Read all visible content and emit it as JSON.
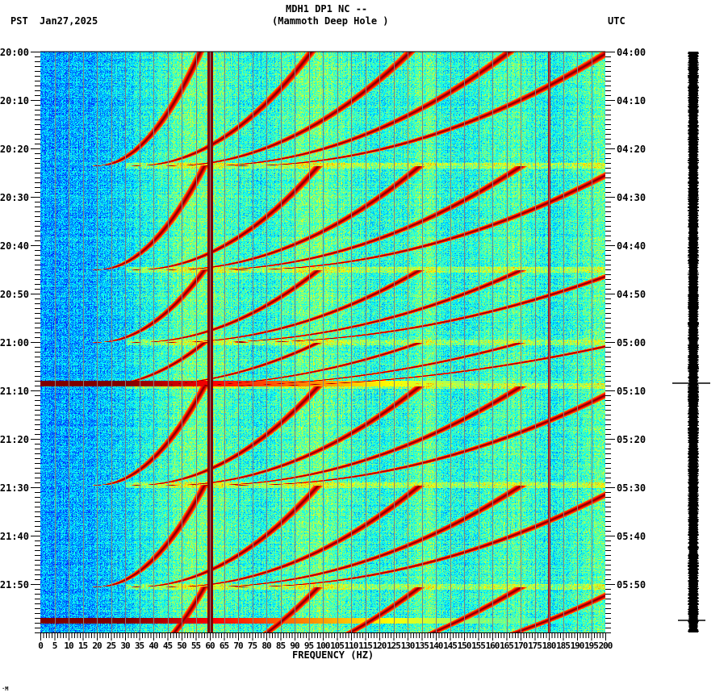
{
  "header": {
    "station": "MDH1 DP1 NC --",
    "site": "(Mammoth Deep Hole )",
    "left_tz": "PST",
    "date": "Jan27,2025",
    "right_tz": "UTC"
  },
  "footer_mark": "·M",
  "chart_data": {
    "type": "heatmap",
    "title": "MDH1 DP1 NC -- (Mammoth Deep Hole )",
    "subtitle": "Jan27,2025",
    "xlabel": "FREQUENCY (HZ)",
    "ylabel_left": "PST",
    "ylabel_right": "UTC",
    "xlim": [
      0,
      200
    ],
    "x_ticks": [
      0,
      5,
      10,
      15,
      20,
      25,
      30,
      35,
      40,
      45,
      50,
      55,
      60,
      65,
      70,
      75,
      80,
      85,
      90,
      95,
      100,
      105,
      110,
      115,
      120,
      125,
      130,
      135,
      140,
      145,
      150,
      155,
      160,
      165,
      170,
      175,
      180,
      185,
      190,
      195,
      200
    ],
    "x_minor_step": 1,
    "y_range_minutes": [
      0,
      120
    ],
    "y_ticks_left": [
      "20:00",
      "20:10",
      "20:20",
      "20:30",
      "20:40",
      "20:50",
      "21:00",
      "21:10",
      "21:20",
      "21:30",
      "21:40",
      "21:50"
    ],
    "y_ticks_right": [
      "04:00",
      "04:10",
      "04:20",
      "04:30",
      "04:40",
      "04:50",
      "05:00",
      "05:10",
      "05:20",
      "05:30",
      "05:40",
      "05:50"
    ],
    "y_minor_step_minutes": 1,
    "colormap": "jet",
    "grid": {
      "vertical_every_hz": 5,
      "color": "#808080"
    },
    "persistent_lines_hz": [
      {
        "freq": 60,
        "strength": "very high"
      },
      {
        "freq": 180,
        "strength": "narrow high"
      }
    ],
    "broadband_events_minutes": [
      68.5,
      117.5
    ],
    "pump_cycle_resets_minutes": [
      -2,
      23.5,
      45,
      60,
      69,
      89.5,
      110.5
    ],
    "harmonic_curves": {
      "description": "Descending-frequency harmonic arcs between resets (frequency rises toward earlier times)",
      "fundamental_start_hz": 20,
      "fundamental_peak_hz": 58,
      "harmonics": [
        1,
        2,
        3,
        4,
        5
      ]
    },
    "noise_level_by_freq": [
      {
        "hz_from": 0,
        "hz_to": 30,
        "level": "low (blue)"
      },
      {
        "hz_from": 30,
        "hz_to": 140,
        "level": "medium (cyan/yellow)"
      },
      {
        "hz_from": 140,
        "hz_to": 200,
        "level": "medium (cyan/green)"
      }
    ]
  },
  "seismogram": {
    "color": "#000000",
    "spikes_minutes": [
      68.5,
      117.5
    ]
  }
}
